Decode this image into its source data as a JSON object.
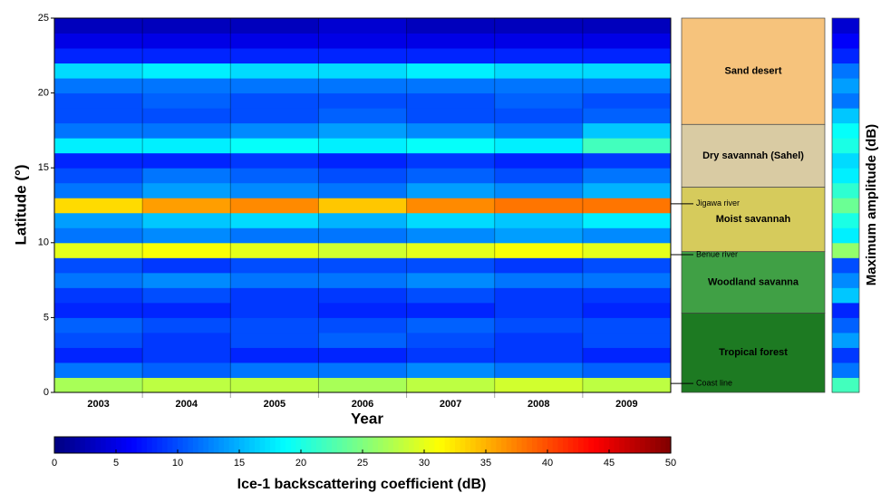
{
  "chart_data": {
    "type": "heatmap",
    "x_label": "Year",
    "y_label": "Latitude (°)",
    "categories": [
      "2003",
      "2004",
      "2005",
      "2006",
      "2007",
      "2008",
      "2009"
    ],
    "ybins": [
      0,
      1,
      2,
      3,
      4,
      5,
      6,
      7,
      8,
      9,
      10,
      11,
      12,
      13,
      14,
      15,
      16,
      17,
      18,
      19,
      20,
      21,
      22,
      23,
      24,
      25
    ],
    "values": [
      [
        27,
        28,
        28,
        27,
        28,
        29,
        28
      ],
      [
        12,
        11,
        12,
        12,
        13,
        12,
        11
      ],
      [
        8,
        9,
        8,
        8,
        9,
        9,
        8
      ],
      [
        10,
        9,
        10,
        11,
        10,
        9,
        10
      ],
      [
        11,
        10,
        10,
        10,
        11,
        10,
        10
      ],
      [
        8,
        8,
        9,
        8,
        8,
        9,
        8
      ],
      [
        9,
        10,
        9,
        9,
        10,
        9,
        9
      ],
      [
        12,
        13,
        12,
        12,
        13,
        12,
        12
      ],
      [
        10,
        9,
        10,
        10,
        10,
        9,
        10
      ],
      [
        30,
        31,
        30,
        29,
        30,
        31,
        30
      ],
      [
        12,
        13,
        12,
        12,
        13,
        14,
        13
      ],
      [
        14,
        16,
        17,
        15,
        17,
        16,
        18
      ],
      [
        33,
        36,
        37,
        34,
        37,
        38,
        38
      ],
      [
        12,
        14,
        13,
        12,
        14,
        13,
        15
      ],
      [
        10,
        12,
        11,
        10,
        11,
        10,
        12
      ],
      [
        8,
        8,
        9,
        8,
        9,
        8,
        9
      ],
      [
        18,
        18,
        19,
        18,
        19,
        18,
        22
      ],
      [
        12,
        12,
        13,
        14,
        13,
        12,
        16
      ],
      [
        10,
        10,
        10,
        11,
        10,
        10,
        11
      ],
      [
        10,
        11,
        10,
        10,
        10,
        11,
        10
      ],
      [
        12,
        12,
        12,
        12,
        12,
        12,
        12
      ],
      [
        17,
        18,
        17,
        17,
        18,
        17,
        17
      ],
      [
        8,
        8,
        8,
        8,
        8,
        8,
        8
      ],
      [
        5,
        5,
        5,
        5,
        5,
        5,
        5
      ],
      [
        3,
        3,
        3,
        4,
        3,
        3,
        3
      ]
    ],
    "ylim": [
      0,
      25
    ],
    "yticks": [
      0,
      5,
      10,
      15,
      20,
      25
    ],
    "colormap": "jet",
    "colorbar": {
      "label": "Ice-1 backscattering coefficient (dB)",
      "lim": [
        0,
        50
      ],
      "ticks": [
        0,
        5,
        10,
        15,
        20,
        25,
        30,
        35,
        40,
        45,
        50
      ]
    },
    "zones": [
      {
        "name": "Sand desert",
        "from": 17.9,
        "to": 25,
        "color": "#f6c37c"
      },
      {
        "name": "Dry savannah (Sahel)",
        "from": 13.7,
        "to": 17.9,
        "color": "#d9cba3"
      },
      {
        "name": "Moist savannah",
        "from": 9.4,
        "to": 13.7,
        "color": "#d6cb5c"
      },
      {
        "name": "Woodland savanna",
        "from": 5.3,
        "to": 9.4,
        "color": "#40a045"
      },
      {
        "name": "Tropical forest",
        "from": 0,
        "to": 5.3,
        "color": "#1d7a22"
      }
    ],
    "annotations": [
      {
        "label": "Jigawa river",
        "lat": 12.6
      },
      {
        "label": "Benue river",
        "lat": 9.2
      },
      {
        "label": "Coast line",
        "lat": 0.6
      }
    ],
    "max_amplitude": {
      "label": "Maximum amplitude (dB)",
      "values": [
        22,
        12,
        9,
        14,
        11,
        8,
        16,
        13,
        10,
        26,
        18,
        20,
        24,
        21,
        18,
        17,
        20,
        19,
        16,
        12,
        14,
        12,
        8,
        6,
        4
      ]
    }
  }
}
